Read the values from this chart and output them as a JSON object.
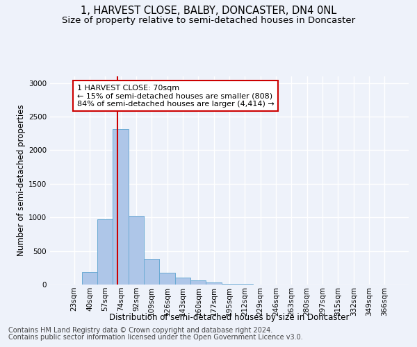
{
  "title1": "1, HARVEST CLOSE, BALBY, DONCASTER, DN4 0NL",
  "title2": "Size of property relative to semi-detached houses in Doncaster",
  "xlabel": "Distribution of semi-detached houses by size in Doncaster",
  "ylabel": "Number of semi-detached properties",
  "categories": [
    "23sqm",
    "40sqm",
    "57sqm",
    "74sqm",
    "92sqm",
    "109sqm",
    "126sqm",
    "143sqm",
    "160sqm",
    "177sqm",
    "195sqm",
    "212sqm",
    "229sqm",
    "246sqm",
    "263sqm",
    "280sqm",
    "297sqm",
    "315sqm",
    "332sqm",
    "349sqm",
    "366sqm"
  ],
  "values": [
    5,
    185,
    970,
    2310,
    1020,
    385,
    175,
    100,
    60,
    30,
    15,
    8,
    5,
    3,
    2,
    2,
    1,
    1,
    1,
    1,
    1
  ],
  "bar_color": "#aec6e8",
  "bar_edge_color": "#6aaad4",
  "vline_color": "#cc0000",
  "annotation_text": "1 HARVEST CLOSE: 70sqm\n← 15% of semi-detached houses are smaller (808)\n84% of semi-detached houses are larger (4,414) →",
  "annotation_box_color": "#ffffff",
  "annotation_box_edge_color": "#cc0000",
  "footer1": "Contains HM Land Registry data © Crown copyright and database right 2024.",
  "footer2": "Contains public sector information licensed under the Open Government Licence v3.0.",
  "ylim": [
    0,
    3100
  ],
  "yticks": [
    0,
    500,
    1000,
    1500,
    2000,
    2500,
    3000
  ],
  "bg_color": "#eef2fa",
  "grid_color": "#ffffff",
  "title1_fontsize": 10.5,
  "title2_fontsize": 9.5,
  "axis_label_fontsize": 8.5,
  "tick_fontsize": 7.5,
  "footer_fontsize": 7.0,
  "annotation_fontsize": 8.0,
  "vline_x": 2.78
}
